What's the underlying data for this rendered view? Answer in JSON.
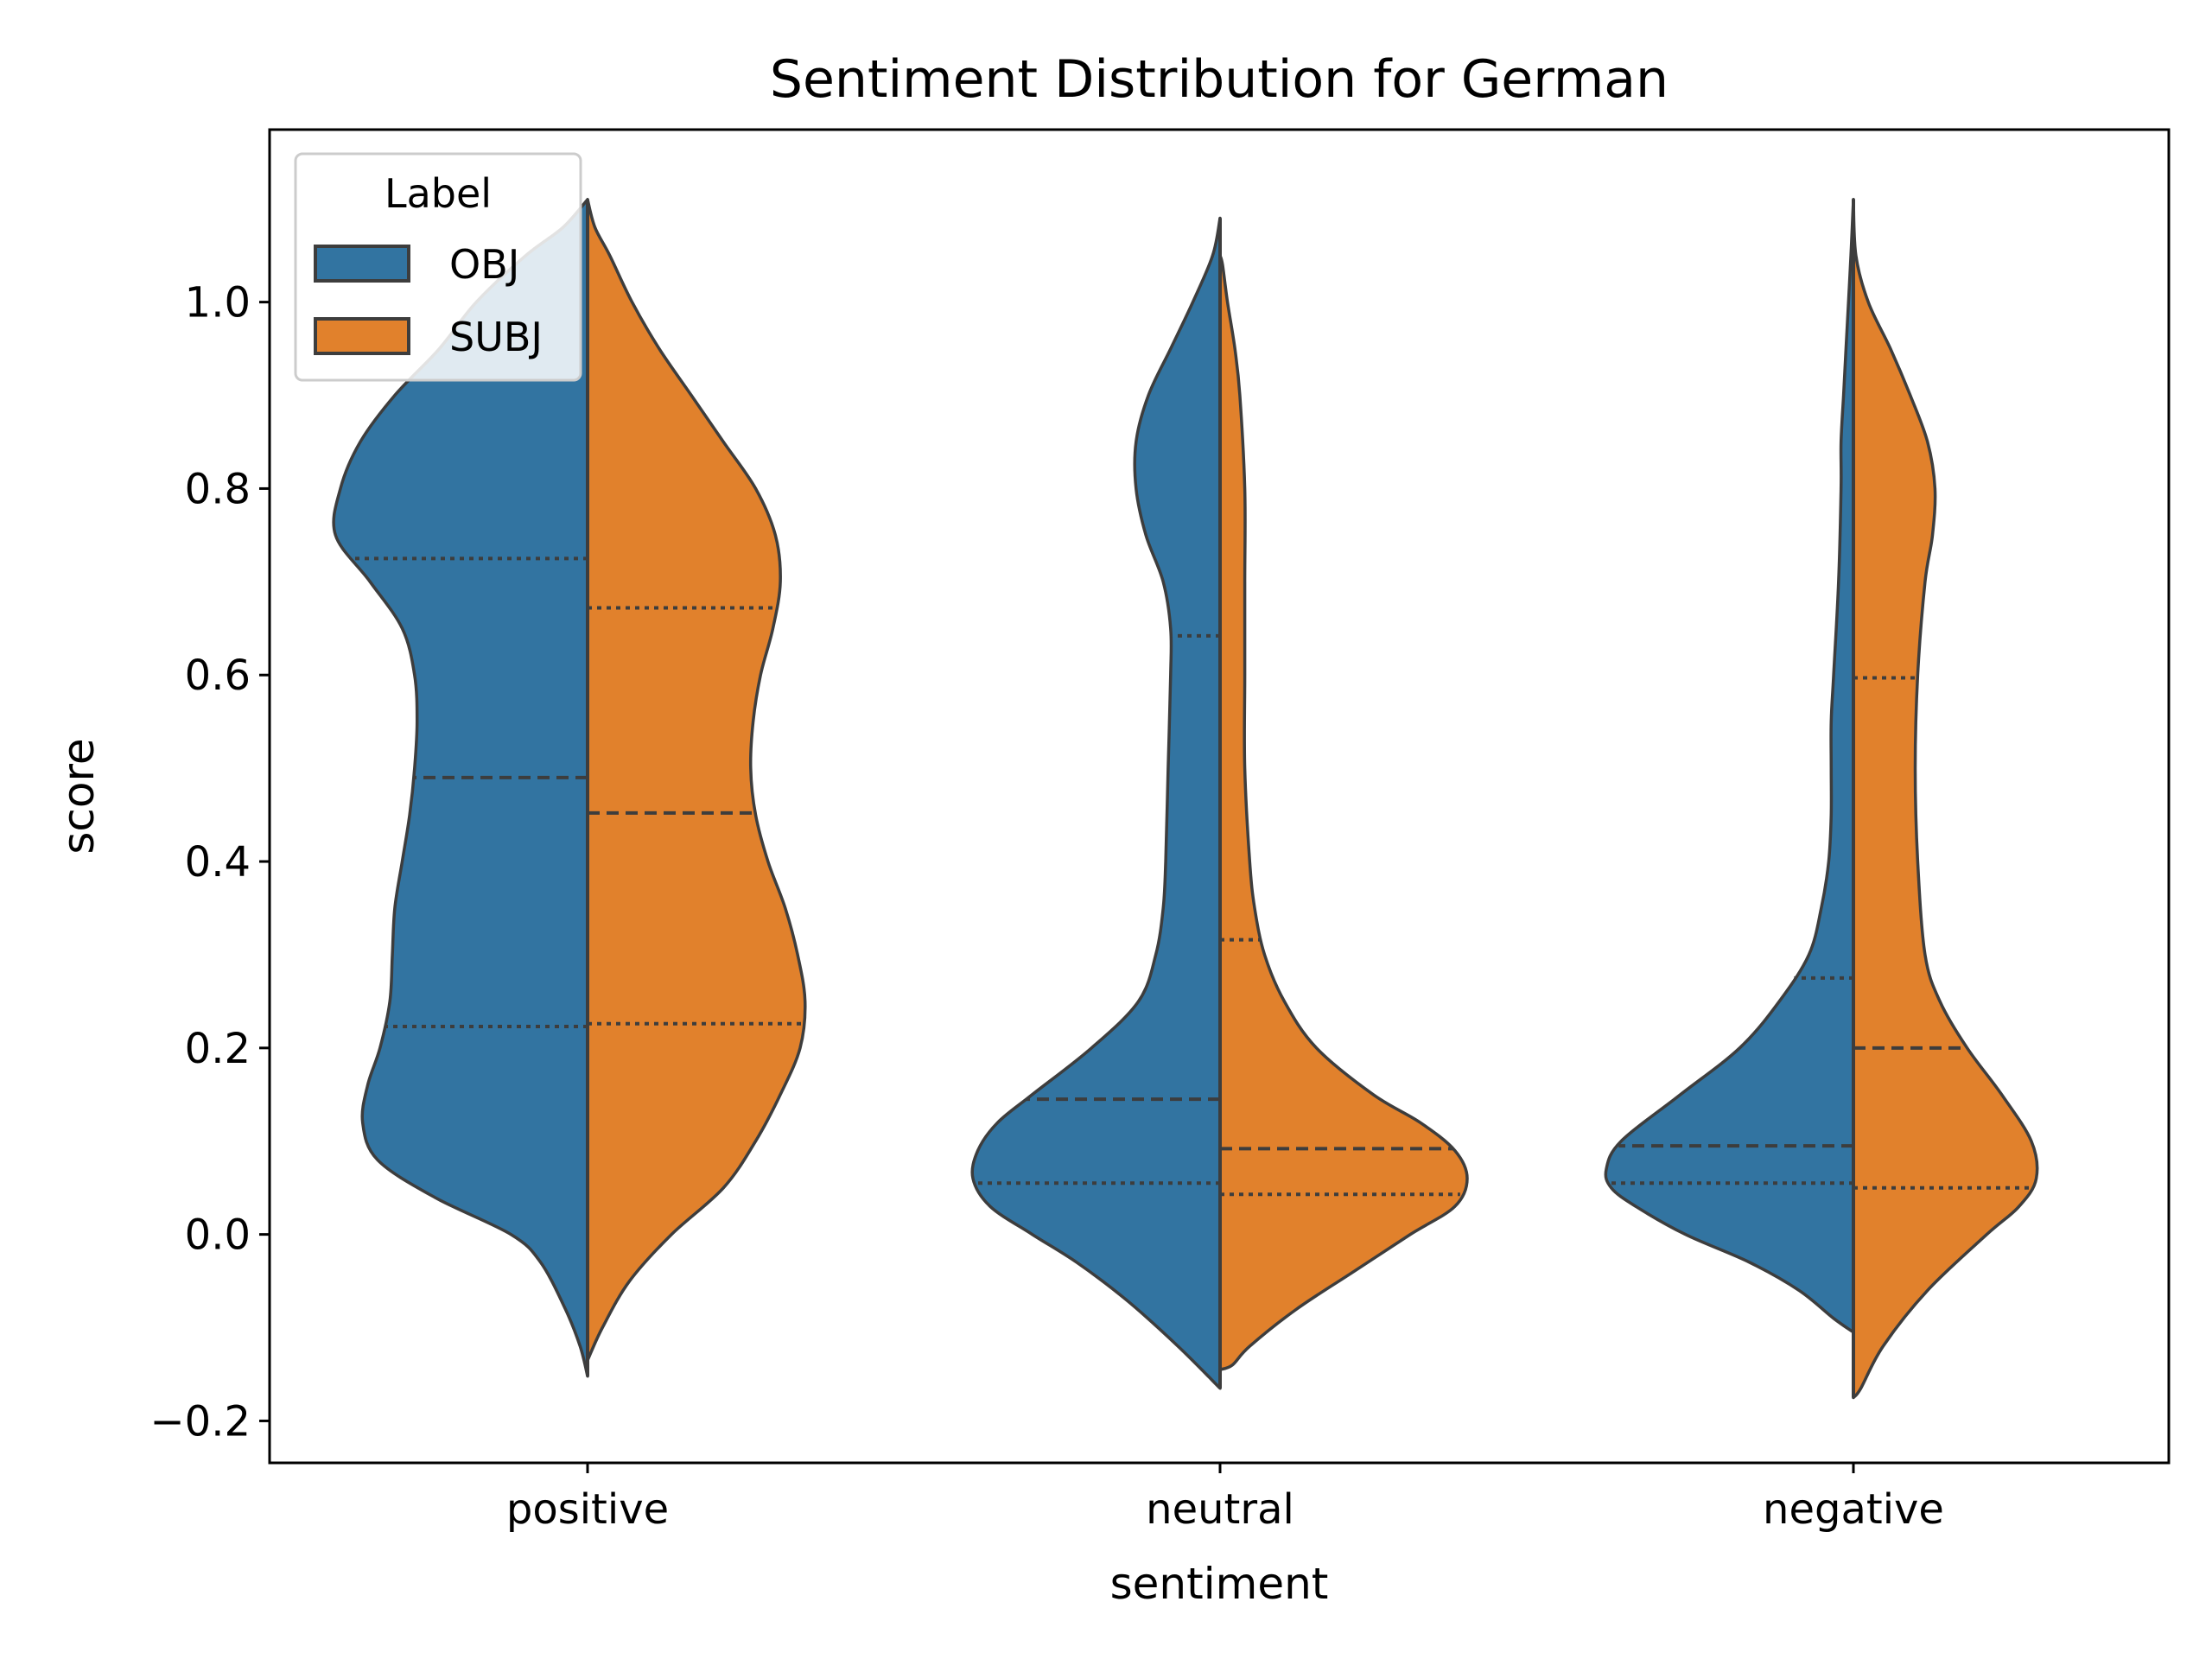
{
  "chart_data": {
    "type": "violin",
    "title": "Sentiment Distribution for German",
    "xlabel": "sentiment",
    "ylabel": "score",
    "ylim": [
      -0.245,
      1.185
    ],
    "yticks": [
      -0.2,
      0.0,
      0.2,
      0.4,
      0.6,
      0.8,
      1.0
    ],
    "ytick_labels": [
      "−0.2",
      "0.0",
      "0.2",
      "0.4",
      "0.6",
      "0.8",
      "1.0"
    ],
    "categories": [
      "positive",
      "neutral",
      "negative"
    ],
    "split": true,
    "inner": "quartiles",
    "legend": {
      "title": "Label",
      "position": "top-left",
      "entries": [
        {
          "name": "OBJ",
          "color": "#3274a1"
        },
        {
          "name": "SUBJ",
          "color": "#e1812c"
        }
      ]
    },
    "series": [
      {
        "name": "OBJ",
        "side": "left",
        "color": "#3274a1",
        "violins": [
          {
            "category": "positive",
            "quartiles": [
              0.223,
              0.49,
              0.725
            ],
            "profile": [
              [
                -0.152,
                0
              ],
              [
                -0.12,
                0.03
              ],
              [
                -0.08,
                0.09
              ],
              [
                -0.03,
                0.19
              ],
              [
                0.0,
                0.31
              ],
              [
                0.04,
                0.62
              ],
              [
                0.08,
                0.85
              ],
              [
                0.12,
                0.91
              ],
              [
                0.16,
                0.89
              ],
              [
                0.2,
                0.84
              ],
              [
                0.25,
                0.8
              ],
              [
                0.3,
                0.79
              ],
              [
                0.35,
                0.78
              ],
              [
                0.4,
                0.75
              ],
              [
                0.45,
                0.72
              ],
              [
                0.5,
                0.7
              ],
              [
                0.55,
                0.69
              ],
              [
                0.6,
                0.7
              ],
              [
                0.65,
                0.75
              ],
              [
                0.7,
                0.88
              ],
              [
                0.75,
                1.02
              ],
              [
                0.8,
                1.0
              ],
              [
                0.85,
                0.92
              ],
              [
                0.9,
                0.78
              ],
              [
                0.95,
                0.6
              ],
              [
                1.0,
                0.45
              ],
              [
                1.05,
                0.25
              ],
              [
                1.08,
                0.1
              ],
              [
                1.11,
                0
              ]
            ]
          },
          {
            "category": "neutral",
            "quartiles": [
              0.055,
              0.145,
              0.642
            ],
            "profile": [
              [
                -0.165,
                0
              ],
              [
                -0.12,
                0.17
              ],
              [
                -0.07,
                0.38
              ],
              [
                -0.03,
                0.58
              ],
              [
                0.0,
                0.76
              ],
              [
                0.03,
                0.93
              ],
              [
                0.06,
                1.0
              ],
              [
                0.09,
                0.98
              ],
              [
                0.12,
                0.9
              ],
              [
                0.15,
                0.76
              ],
              [
                0.2,
                0.52
              ],
              [
                0.25,
                0.33
              ],
              [
                0.3,
                0.26
              ],
              [
                0.35,
                0.23
              ],
              [
                0.4,
                0.22
              ],
              [
                0.5,
                0.21
              ],
              [
                0.6,
                0.2
              ],
              [
                0.65,
                0.2
              ],
              [
                0.7,
                0.23
              ],
              [
                0.75,
                0.3
              ],
              [
                0.8,
                0.34
              ],
              [
                0.85,
                0.34
              ],
              [
                0.9,
                0.29
              ],
              [
                0.95,
                0.2
              ],
              [
                1.0,
                0.11
              ],
              [
                1.05,
                0.03
              ],
              [
                1.09,
                0
              ]
            ]
          },
          {
            "category": "negative",
            "quartiles": [
              0.055,
              0.095,
              0.275
            ],
            "profile": [
              [
                -0.105,
                0
              ],
              [
                -0.09,
                0.08
              ],
              [
                -0.06,
                0.22
              ],
              [
                -0.03,
                0.42
              ],
              [
                0.0,
                0.68
              ],
              [
                0.03,
                0.88
              ],
              [
                0.05,
                0.98
              ],
              [
                0.07,
                1.0
              ],
              [
                0.1,
                0.94
              ],
              [
                0.15,
                0.7
              ],
              [
                0.2,
                0.46
              ],
              [
                0.25,
                0.3
              ],
              [
                0.3,
                0.18
              ],
              [
                0.35,
                0.13
              ],
              [
                0.4,
                0.1
              ],
              [
                0.45,
                0.09
              ],
              [
                0.5,
                0.09
              ],
              [
                0.55,
                0.09
              ],
              [
                0.6,
                0.08
              ],
              [
                0.7,
                0.06
              ],
              [
                0.8,
                0.05
              ],
              [
                0.85,
                0.05
              ],
              [
                0.9,
                0.04
              ],
              [
                0.95,
                0.03
              ],
              [
                1.0,
                0.02
              ],
              [
                1.05,
                0.01
              ],
              [
                1.11,
                0
              ]
            ]
          }
        ]
      },
      {
        "name": "SUBJ",
        "side": "right",
        "color": "#e1812c",
        "violins": [
          {
            "category": "positive",
            "quartiles": [
              0.226,
              0.452,
              0.672
            ],
            "profile": [
              [
                -0.135,
                0
              ],
              [
                -0.1,
                0.06
              ],
              [
                -0.05,
                0.17
              ],
              [
                0.0,
                0.34
              ],
              [
                0.05,
                0.55
              ],
              [
                0.1,
                0.68
              ],
              [
                0.15,
                0.78
              ],
              [
                0.2,
                0.86
              ],
              [
                0.25,
                0.88
              ],
              [
                0.3,
                0.85
              ],
              [
                0.35,
                0.8
              ],
              [
                0.4,
                0.73
              ],
              [
                0.45,
                0.68
              ],
              [
                0.5,
                0.66
              ],
              [
                0.55,
                0.67
              ],
              [
                0.6,
                0.7
              ],
              [
                0.65,
                0.75
              ],
              [
                0.7,
                0.78
              ],
              [
                0.75,
                0.76
              ],
              [
                0.8,
                0.68
              ],
              [
                0.85,
                0.55
              ],
              [
                0.9,
                0.42
              ],
              [
                0.95,
                0.29
              ],
              [
                1.0,
                0.18
              ],
              [
                1.05,
                0.09
              ],
              [
                1.08,
                0.03
              ],
              [
                1.11,
                0
              ]
            ]
          },
          {
            "category": "neutral",
            "quartiles": [
              0.043,
              0.092,
              0.316
            ],
            "profile": [
              [
                -0.145,
                0
              ],
              [
                -0.14,
                0.05
              ],
              [
                -0.12,
                0.12
              ],
              [
                -0.08,
                0.31
              ],
              [
                -0.04,
                0.54
              ],
              [
                0.0,
                0.77
              ],
              [
                0.03,
                0.95
              ],
              [
                0.06,
                1.0
              ],
              [
                0.09,
                0.95
              ],
              [
                0.12,
                0.81
              ],
              [
                0.15,
                0.62
              ],
              [
                0.2,
                0.39
              ],
              [
                0.25,
                0.26
              ],
              [
                0.3,
                0.18
              ],
              [
                0.35,
                0.14
              ],
              [
                0.4,
                0.12
              ],
              [
                0.5,
                0.1
              ],
              [
                0.6,
                0.1
              ],
              [
                0.7,
                0.1
              ],
              [
                0.8,
                0.1
              ],
              [
                0.9,
                0.08
              ],
              [
                0.95,
                0.06
              ],
              [
                1.0,
                0.03
              ],
              [
                1.04,
                0.01
              ],
              [
                1.05,
                0
              ]
            ]
          },
          {
            "category": "negative",
            "quartiles": [
              0.05,
              0.2,
              0.597
            ],
            "profile": [
              [
                -0.175,
                0
              ],
              [
                -0.165,
                0.03
              ],
              [
                -0.12,
                0.12
              ],
              [
                -0.06,
                0.3
              ],
              [
                0.0,
                0.54
              ],
              [
                0.03,
                0.67
              ],
              [
                0.06,
                0.74
              ],
              [
                0.1,
                0.72
              ],
              [
                0.15,
                0.6
              ],
              [
                0.2,
                0.46
              ],
              [
                0.25,
                0.35
              ],
              [
                0.3,
                0.29
              ],
              [
                0.4,
                0.26
              ],
              [
                0.5,
                0.25
              ],
              [
                0.6,
                0.26
              ],
              [
                0.7,
                0.29
              ],
              [
                0.75,
                0.32
              ],
              [
                0.8,
                0.33
              ],
              [
                0.85,
                0.3
              ],
              [
                0.9,
                0.23
              ],
              [
                0.95,
                0.15
              ],
              [
                1.0,
                0.06
              ],
              [
                1.05,
                0.01
              ],
              [
                1.11,
                0
              ]
            ]
          }
        ]
      }
    ]
  }
}
